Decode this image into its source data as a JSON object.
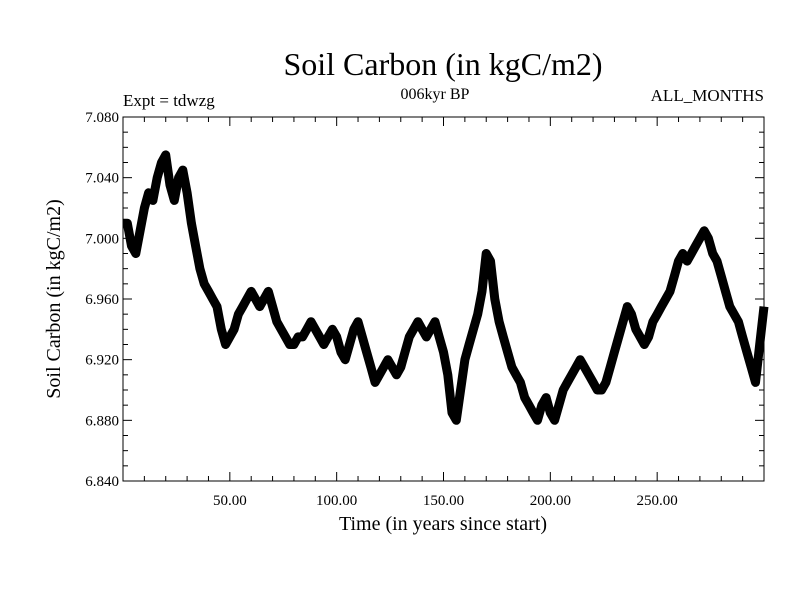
{
  "chart_data": {
    "type": "line",
    "title": "Soil Carbon (in kgC/m2)",
    "subtitle": "006kyr BP",
    "left_note": "Expt = tdwzg",
    "right_note": "ALL_MONTHS",
    "xlabel": "Time (in years since start)",
    "ylabel": "Soil Carbon (in kgC/m2)",
    "xlim": [
      0,
      300
    ],
    "ylim": [
      6.84,
      7.08
    ],
    "x_ticks": [
      50,
      100,
      150,
      200,
      250
    ],
    "x_tick_labels": [
      "50.00",
      "100.00",
      "150.00",
      "200.00",
      "250.00"
    ],
    "y_ticks": [
      6.84,
      6.88,
      6.92,
      6.96,
      7.0,
      7.04,
      7.08
    ],
    "y_tick_labels": [
      "6.840",
      "6.880",
      "6.920",
      "6.960",
      "7.000",
      "7.040",
      "7.080"
    ],
    "grid": false,
    "series_color": "#000000",
    "series": [
      {
        "x": [
          0,
          2,
          4,
          6,
          8,
          10,
          12,
          14,
          16,
          18,
          20,
          22,
          24,
          26,
          28,
          30,
          32,
          34,
          36,
          38,
          40,
          42,
          44,
          46,
          48,
          50,
          52,
          54,
          56,
          58,
          60,
          62,
          64,
          66,
          68,
          70,
          72,
          74,
          76,
          78,
          80,
          82,
          84,
          86,
          88,
          90,
          92,
          94,
          96,
          98,
          100,
          102,
          104,
          106,
          108,
          110,
          112,
          114,
          116,
          118,
          120,
          122,
          124,
          126,
          128,
          130,
          132,
          134,
          136,
          138,
          140,
          142,
          144,
          146,
          148,
          150,
          152,
          154,
          156,
          158,
          160,
          162,
          164,
          166,
          168,
          170,
          172,
          174,
          176,
          178,
          180,
          182,
          184,
          186,
          188,
          190,
          192,
          194,
          196,
          198,
          200,
          202,
          204,
          206,
          208,
          210,
          212,
          214,
          216,
          218,
          220,
          222,
          224,
          226,
          228,
          230,
          232,
          234,
          236,
          238,
          240,
          242,
          244,
          246,
          248,
          250,
          252,
          254,
          256,
          258,
          260,
          262,
          264,
          266,
          268,
          270,
          272,
          274,
          276,
          278,
          280,
          282,
          284,
          286,
          288,
          290,
          292,
          294,
          296,
          298,
          300
        ],
        "y": [
          7.01,
          7.01,
          6.995,
          6.99,
          7.005,
          7.02,
          7.03,
          7.025,
          7.04,
          7.05,
          7.055,
          7.035,
          7.025,
          7.04,
          7.045,
          7.03,
          7.01,
          6.995,
          6.98,
          6.97,
          6.965,
          6.96,
          6.955,
          6.94,
          6.93,
          6.935,
          6.94,
          6.95,
          6.955,
          6.96,
          6.965,
          6.96,
          6.955,
          6.96,
          6.965,
          6.955,
          6.945,
          6.94,
          6.935,
          6.93,
          6.93,
          6.935,
          6.935,
          6.94,
          6.945,
          6.94,
          6.935,
          6.93,
          6.935,
          6.94,
          6.935,
          6.925,
          6.92,
          6.93,
          6.94,
          6.945,
          6.935,
          6.925,
          6.915,
          6.905,
          6.91,
          6.915,
          6.92,
          6.915,
          6.91,
          6.915,
          6.925,
          6.935,
          6.94,
          6.945,
          6.94,
          6.935,
          6.94,
          6.945,
          6.935,
          6.925,
          6.91,
          6.885,
          6.88,
          6.9,
          6.92,
          6.93,
          6.94,
          6.95,
          6.965,
          6.99,
          6.985,
          6.96,
          6.945,
          6.935,
          6.925,
          6.915,
          6.91,
          6.905,
          6.895,
          6.89,
          6.885,
          6.88,
          6.89,
          6.895,
          6.885,
          6.88,
          6.89,
          6.9,
          6.905,
          6.91,
          6.915,
          6.92,
          6.915,
          6.91,
          6.905,
          6.9,
          6.9,
          6.905,
          6.915,
          6.925,
          6.935,
          6.945,
          6.955,
          6.95,
          6.94,
          6.935,
          6.93,
          6.935,
          6.945,
          6.95,
          6.955,
          6.96,
          6.965,
          6.975,
          6.985,
          6.99,
          6.985,
          6.99,
          6.995,
          7.0,
          7.005,
          7.0,
          6.99,
          6.985,
          6.975,
          6.965,
          6.955,
          6.95,
          6.945,
          6.935,
          6.925,
          6.915,
          6.905,
          6.93,
          6.955
        ]
      }
    ]
  }
}
